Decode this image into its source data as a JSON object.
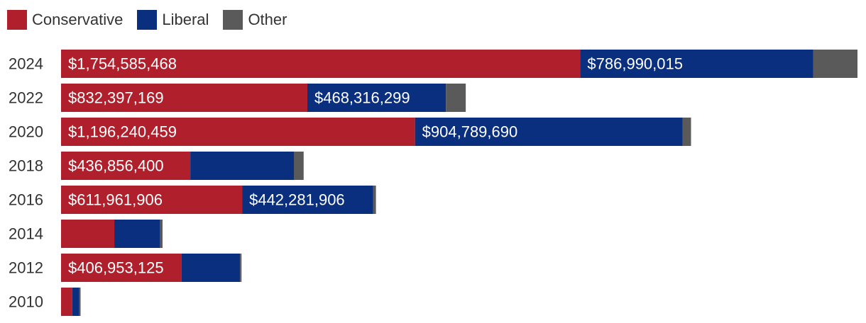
{
  "chart_data": {
    "type": "bar",
    "orientation": "horizontal",
    "stacked": true,
    "categories": [
      "2024",
      "2022",
      "2020",
      "2018",
      "2016",
      "2014",
      "2012",
      "2010"
    ],
    "series": [
      {
        "name": "Conservative",
        "color": "#b0202c",
        "values": [
          1754585468,
          832397169,
          1196240459,
          436856400,
          611961906,
          180000000,
          406953125,
          38000000
        ],
        "labels": [
          "$1,754,585,468",
          "$832,397,169",
          "$1,196,240,459",
          "$436,856,400",
          "$611,961,906",
          "",
          "$406,953,125",
          ""
        ]
      },
      {
        "name": "Liberal",
        "color": "#0a2f7f",
        "values": [
          786990015,
          468316299,
          904789690,
          350000000,
          442281906,
          155000000,
          198000000,
          24000000
        ],
        "labels": [
          "$786,990,015",
          "$468,316,299",
          "$904,789,690",
          "",
          "$442,281,906",
          "",
          "",
          ""
        ]
      },
      {
        "name": "Other",
        "color": "#5a5a5a",
        "values": [
          150000000,
          67000000,
          28000000,
          33000000,
          10000000,
          8000000,
          5000000,
          4000000
        ],
        "labels": [
          "",
          "",
          "",
          "",
          "",
          "",
          "",
          ""
        ]
      }
    ],
    "xlim": [
      0,
      2691575483
    ],
    "legend_position": "top-left",
    "grid": false
  }
}
